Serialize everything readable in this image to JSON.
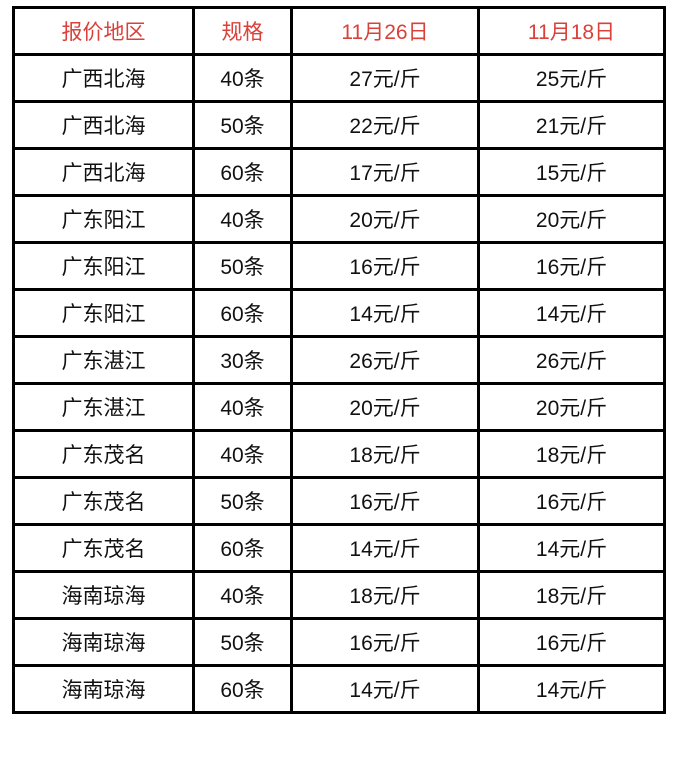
{
  "header_color": "#d9413a",
  "headers": [
    "报价地区",
    "规格",
    "11月26日",
    "11月18日"
  ],
  "rows": [
    [
      "广西北海",
      "40条",
      "27元/斤",
      "25元/斤"
    ],
    [
      "广西北海",
      "50条",
      "22元/斤",
      "21元/斤"
    ],
    [
      "广西北海",
      "60条",
      "17元/斤",
      "15元/斤"
    ],
    [
      "广东阳江",
      "40条",
      "20元/斤",
      "20元/斤"
    ],
    [
      "广东阳江",
      "50条",
      "16元/斤",
      "16元/斤"
    ],
    [
      "广东阳江",
      "60条",
      "14元/斤",
      "14元/斤"
    ],
    [
      "广东湛江",
      "30条",
      "26元/斤",
      "26元/斤"
    ],
    [
      "广东湛江",
      "40条",
      "20元/斤",
      "20元/斤"
    ],
    [
      "广东茂名",
      "40条",
      "18元/斤",
      "18元/斤"
    ],
    [
      "广东茂名",
      "50条",
      "16元/斤",
      "16元/斤"
    ],
    [
      "广东茂名",
      "60条",
      "14元/斤",
      "14元/斤"
    ],
    [
      "海南琼海",
      "40条",
      "18元/斤",
      "18元/斤"
    ],
    [
      "海南琼海",
      "50条",
      "16元/斤",
      "16元/斤"
    ],
    [
      "海南琼海",
      "60条",
      "14元/斤",
      "14元/斤"
    ]
  ]
}
